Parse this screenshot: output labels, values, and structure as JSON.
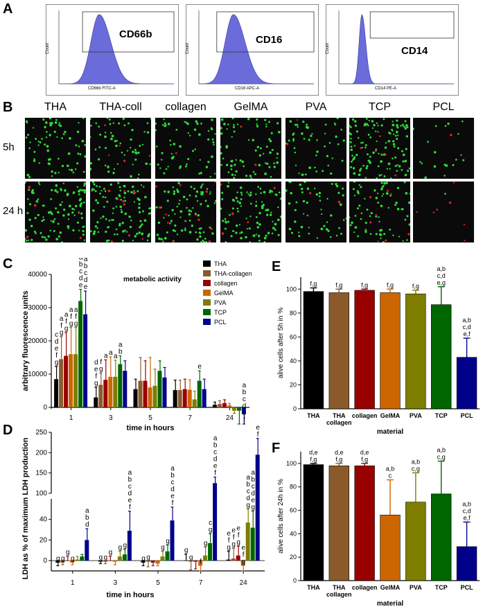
{
  "panels": {
    "A": "A",
    "B": "B",
    "C": "C",
    "D": "D",
    "E": "E",
    "F": "F"
  },
  "facs": [
    {
      "marker": "CD66b",
      "xlabel": "CD66b FITC-A",
      "ylabel": "Count",
      "peak": 0.35
    },
    {
      "marker": "CD16",
      "xlabel": "CD16 APC-A",
      "ylabel": "Count",
      "peak": 0.3
    },
    {
      "marker": "CD14",
      "xlabel": "CD14 PE-A",
      "ylabel": "Count",
      "peak": 0.2
    }
  ],
  "micro": {
    "columns": [
      "THA",
      "THA-coll",
      "collagen",
      "GelMA",
      "PVA",
      "TCP",
      "PCL"
    ],
    "rows": [
      "5h",
      "24 h"
    ]
  },
  "colors": {
    "THA": "#000000",
    "THA-collagen": "#8b5a2b",
    "collagen": "#990000",
    "GelMA": "#cc6600",
    "PVA": "#7d7d00",
    "TCP": "#006600",
    "PCL": "#00008b",
    "histogram": "#6b6bd9"
  },
  "chart_data": [
    {
      "panel": "C",
      "type": "bar",
      "title": "metabolic activity",
      "xlabel": "time in hours",
      "ylabel": "arbitrary fluorescence units",
      "categories": [
        "1",
        "3",
        "5",
        "7",
        "24"
      ],
      "ylim": [
        0,
        40000
      ],
      "yticks": [
        "0",
        "10000",
        "20000",
        "30000",
        "40000"
      ],
      "series": [
        {
          "name": "THA",
          "values": [
            8500,
            3000,
            5500,
            5200,
            800
          ],
          "err": [
            3800,
            3000,
            3000,
            3000,
            800
          ]
        },
        {
          "name": "THA-collagen",
          "values": [
            14500,
            6800,
            8000,
            5200,
            1000
          ],
          "err": [
            6800,
            3500,
            7000,
            3000,
            1000
          ]
        },
        {
          "name": "collagen",
          "values": [
            15500,
            8300,
            8000,
            5500,
            1300
          ],
          "err": [
            7000,
            6000,
            6000,
            3000,
            1000
          ]
        },
        {
          "name": "GelMA",
          "values": [
            16000,
            9200,
            6000,
            5300,
            600
          ],
          "err": [
            8000,
            6000,
            9000,
            3000,
            600
          ]
        },
        {
          "name": "PVA",
          "values": [
            16000,
            9200,
            6500,
            2400,
            -1000
          ],
          "err": [
            8000,
            5000,
            5000,
            2500,
            800
          ]
        },
        {
          "name": "TCP",
          "values": [
            32000,
            13000,
            11000,
            8000,
            -1000
          ],
          "err": [
            3500,
            2500,
            3000,
            3000,
            4000
          ]
        },
        {
          "name": "PCL",
          "values": [
            28000,
            11000,
            9000,
            5500,
            -2000
          ],
          "err": [
            7000,
            3000,
            3000,
            3000,
            3000
          ]
        }
      ],
      "annotations": [
        {
          "cat": 0,
          "series": 0,
          "lines": [
            "c",
            "d",
            "e",
            "f",
            "g"
          ]
        },
        {
          "cat": 0,
          "series": 1,
          "lines": [
            "a",
            "f",
            "g"
          ]
        },
        {
          "cat": 0,
          "series": 2,
          "lines": [
            "a",
            "f",
            "g"
          ]
        },
        {
          "cat": 0,
          "series": 3,
          "lines": [
            "a",
            "f",
            "g"
          ]
        },
        {
          "cat": 0,
          "series": 4,
          "lines": [
            "a",
            "f",
            "g"
          ]
        },
        {
          "cat": 0,
          "series": 5,
          "lines": [
            "a",
            "b",
            "c",
            "d",
            "e"
          ]
        },
        {
          "cat": 0,
          "series": 6,
          "lines": [
            "a",
            "b",
            "c",
            "d",
            "e"
          ]
        },
        {
          "cat": 1,
          "series": 0,
          "lines": [
            "d",
            "e",
            "f",
            "g"
          ]
        },
        {
          "cat": 1,
          "series": 1,
          "lines": [
            "f",
            "g"
          ]
        },
        {
          "cat": 1,
          "series": 2,
          "lines": [
            "a"
          ]
        },
        {
          "cat": 1,
          "series": 3,
          "lines": [
            "a"
          ]
        },
        {
          "cat": 1,
          "series": 4,
          "lines": [
            "a"
          ]
        },
        {
          "cat": 1,
          "series": 5,
          "lines": [
            "a",
            "b"
          ]
        },
        {
          "cat": 3,
          "series": 5,
          "lines": [
            "e"
          ]
        },
        {
          "cat": 4,
          "series": 6,
          "lines": [
            "a",
            "b",
            "c",
            "d",
            "e",
            "f"
          ]
        }
      ],
      "legend": [
        "THA",
        "THA-collagen",
        "collagen",
        "GelMA",
        "PVA",
        "TCP",
        "PCL"
      ]
    },
    {
      "panel": "D",
      "type": "bar",
      "xlabel": "time in hours",
      "ylabel": "LDH as % of maximum LDH production",
      "categories": [
        "1",
        "3",
        "5",
        "7",
        "24"
      ],
      "ylim": [
        -10,
        250
      ],
      "axis_break": [
        60,
        100
      ],
      "yticks_low": [
        "0",
        "20",
        "40"
      ],
      "yticks_high": [
        "100",
        "150",
        "200",
        "250"
      ],
      "series": [
        {
          "name": "THA",
          "values": [
            -2,
            -1,
            -2,
            0,
            1
          ],
          "err": [
            3,
            2,
            3,
            6,
            8
          ]
        },
        {
          "name": "THA-collagen",
          "values": [
            -2,
            -1,
            -1,
            -1,
            2
          ],
          "err": [
            2,
            2,
            5,
            8,
            10
          ]
        },
        {
          "name": "collagen",
          "values": [
            0,
            0,
            -2,
            -1,
            5
          ],
          "err": [
            4,
            4,
            3,
            7,
            9
          ]
        },
        {
          "name": "GelMA",
          "values": [
            -2,
            -1,
            -3,
            -5,
            -5
          ],
          "err": [
            2,
            3,
            2,
            5,
            5
          ]
        },
        {
          "name": "PVA",
          "values": [
            1,
            4,
            4,
            5,
            37
          ],
          "err": [
            3,
            5,
            5,
            8,
            13
          ]
        },
        {
          "name": "TCP",
          "values": [
            4,
            6,
            9,
            17,
            32
          ],
          "err": [
            2,
            5,
            6,
            9,
            16
          ]
        },
        {
          "name": "PCL",
          "values": [
            20,
            29,
            39,
            125,
            195
          ],
          "err": [
            11,
            19,
            13,
            15,
            40
          ]
        }
      ],
      "annotations": [
        {
          "cat": 0,
          "series": 0,
          "lines": [
            "g"
          ]
        },
        {
          "cat": 0,
          "series": 1,
          "lines": [
            "g"
          ]
        },
        {
          "cat": 0,
          "series": 2,
          "lines": [
            "g"
          ]
        },
        {
          "cat": 0,
          "series": 3,
          "lines": [
            "g"
          ]
        },
        {
          "cat": 0,
          "series": 6,
          "lines": [
            "a",
            "b",
            "d"
          ]
        },
        {
          "cat": 1,
          "series": 0,
          "lines": [
            "g"
          ]
        },
        {
          "cat": 1,
          "series": 1,
          "lines": [
            "g"
          ]
        },
        {
          "cat": 1,
          "series": 2,
          "lines": [
            "g"
          ]
        },
        {
          "cat": 1,
          "series": 4,
          "lines": [
            "g"
          ]
        },
        {
          "cat": 1,
          "series": 5,
          "lines": [
            "g"
          ]
        },
        {
          "cat": 1,
          "series": 6,
          "lines": [
            "a",
            "b",
            "c",
            "d",
            "e",
            "f"
          ]
        },
        {
          "cat": 2,
          "series": 0,
          "lines": [
            "g"
          ]
        },
        {
          "cat": 2,
          "series": 1,
          "lines": [
            "g"
          ]
        },
        {
          "cat": 2,
          "series": 4,
          "lines": [
            "g"
          ]
        },
        {
          "cat": 2,
          "series": 5,
          "lines": [
            "g"
          ]
        },
        {
          "cat": 2,
          "series": 6,
          "lines": [
            "a",
            "b",
            "c",
            "d",
            "e",
            "f"
          ]
        },
        {
          "cat": 3,
          "series": 0,
          "lines": [
            "g"
          ]
        },
        {
          "cat": 3,
          "series": 1,
          "lines": [
            "g"
          ]
        },
        {
          "cat": 3,
          "series": 3,
          "lines": [
            "f"
          ]
        },
        {
          "cat": 3,
          "series": 4,
          "lines": [
            "g"
          ]
        },
        {
          "cat": 3,
          "series": 5,
          "lines": [
            "c",
            "g"
          ]
        },
        {
          "cat": 3,
          "series": 6,
          "lines": [
            "a",
            "b",
            "c",
            "d",
            "e",
            "f"
          ]
        },
        {
          "cat": 4,
          "series": 0,
          "lines": [
            "e",
            "f",
            "g"
          ]
        },
        {
          "cat": 4,
          "series": 1,
          "lines": [
            "e",
            "f",
            "g"
          ]
        },
        {
          "cat": 4,
          "series": 2,
          "lines": [
            "e",
            "f",
            "g"
          ]
        },
        {
          "cat": 4,
          "series": 3,
          "lines": [
            "e",
            "f",
            "g"
          ]
        },
        {
          "cat": 4,
          "series": 4,
          "lines": [
            "a",
            "b",
            "c",
            "d",
            "g"
          ]
        },
        {
          "cat": 4,
          "series": 5,
          "lines": [
            "a",
            "b",
            "c",
            "d",
            "e",
            "g"
          ]
        },
        {
          "cat": 4,
          "series": 6,
          "lines": [
            "a",
            "b",
            "c",
            "d",
            "e",
            "f"
          ]
        }
      ]
    },
    {
      "panel": "E",
      "type": "bar",
      "xlabel": "material",
      "ylabel": "alive cells after 5h in %",
      "categories": [
        "THA",
        "THA collagen",
        "collagen",
        "GelMA",
        "PVA",
        "TCP",
        "PCL"
      ],
      "ylim": [
        0,
        110
      ],
      "yticks": [
        "0",
        "20",
        "40",
        "60",
        "80",
        "100"
      ],
      "values": [
        98,
        97,
        99,
        97,
        96,
        87,
        43
      ],
      "err": [
        3,
        3,
        1,
        3,
        3,
        15,
        16
      ],
      "annotations": [
        [
          "f,g"
        ],
        [
          "f,g"
        ],
        [
          "f,g"
        ],
        [
          "f,g"
        ],
        [
          "f,g"
        ],
        [
          "a,b",
          "c,d",
          "e,g"
        ],
        [
          "a,b",
          "c,d",
          "e,f"
        ]
      ]
    },
    {
      "panel": "F",
      "type": "bar",
      "xlabel": "material",
      "ylabel": "alive cells after 24h in %",
      "categories": [
        "THA",
        "THA collagen",
        "collagen",
        "GelMA",
        "PVA",
        "TCP",
        "PCL"
      ],
      "ylim": [
        0,
        110
      ],
      "yticks": [
        "0",
        "20",
        "40",
        "60",
        "80",
        "100"
      ],
      "values": [
        99,
        98,
        98,
        56,
        67,
        74,
        29
      ],
      "err": [
        1,
        2,
        2,
        30,
        25,
        28,
        21
      ],
      "annotations": [
        [
          "d,e",
          "f,g"
        ],
        [
          "d,e",
          "f,g"
        ],
        [
          "d,e",
          "f,g"
        ],
        [
          "a,b",
          "c"
        ],
        [
          "a,b",
          "c,g"
        ],
        [
          "a,b",
          "c,g"
        ],
        [
          "a,b",
          "c,d",
          "e,f"
        ]
      ]
    }
  ]
}
